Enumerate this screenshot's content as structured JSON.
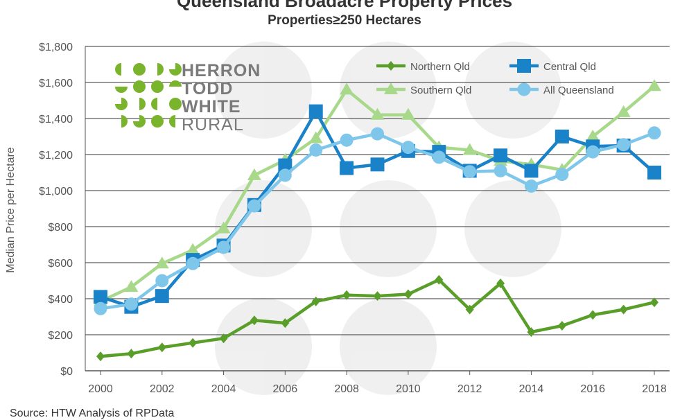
{
  "chart_data": {
    "type": "line",
    "title": "Queensland Broadacre Property Prices",
    "subtitle": "Properties≥250 Hectares",
    "ylabel": "Median Price per Hectare",
    "xlabel": "",
    "x": [
      2000,
      2001,
      2002,
      2003,
      2004,
      2005,
      2006,
      2007,
      2008,
      2009,
      2010,
      2011,
      2012,
      2013,
      2014,
      2015,
      2016,
      2017,
      2018
    ],
    "x_tick_labels": [
      "2000",
      "2002",
      "2004",
      "2006",
      "2008",
      "2010",
      "2012",
      "2014",
      "2016",
      "2018"
    ],
    "x_ticks": [
      2000,
      2002,
      2004,
      2006,
      2008,
      2010,
      2012,
      2014,
      2016,
      2018
    ],
    "y_tick_labels": [
      "$0",
      "$200",
      "$400",
      "$600",
      "$800",
      "$1,000",
      "$1,200",
      "$1,400",
      "$1,600",
      "$1,800"
    ],
    "y_ticks": [
      0,
      200,
      400,
      600,
      800,
      1000,
      1200,
      1400,
      1600,
      1800
    ],
    "ylim": [
      0,
      1800
    ],
    "xlim": [
      2000,
      2018
    ],
    "grid": "horizontal",
    "legend_position": "top-right",
    "series": [
      {
        "name": "Northern Qld",
        "color": "#5a9e2a",
        "marker": "diamond",
        "values": [
          80,
          95,
          130,
          155,
          180,
          280,
          265,
          385,
          420,
          415,
          425,
          505,
          340,
          485,
          215,
          250,
          310,
          340,
          380
        ]
      },
      {
        "name": "Central Qld",
        "color": "#1a82c8",
        "marker": "square",
        "values": [
          410,
          355,
          415,
          615,
          695,
          920,
          1140,
          1440,
          1125,
          1145,
          1220,
          1215,
          1110,
          1195,
          1110,
          1300,
          1245,
          1250,
          1100
        ]
      },
      {
        "name": "Southern Qld",
        "color": "#a8d88a",
        "marker": "triangle",
        "values": [
          385,
          465,
          595,
          670,
          790,
          1085,
          1170,
          1290,
          1560,
          1420,
          1420,
          1240,
          1225,
          1165,
          1145,
          1115,
          1300,
          1435,
          1580
        ]
      },
      {
        "name": "All Queensland",
        "color": "#7ec6ea",
        "marker": "circle",
        "values": [
          345,
          370,
          500,
          595,
          685,
          915,
          1085,
          1225,
          1280,
          1315,
          1240,
          1185,
          1105,
          1110,
          1025,
          1090,
          1215,
          1255,
          1320
        ]
      }
    ]
  },
  "logo": {
    "lines": [
      "HERRON",
      "TODD",
      "WHITE",
      "RURAL"
    ],
    "color": "#7ab42c"
  },
  "source": "Source: HTW Analysis of RPData"
}
